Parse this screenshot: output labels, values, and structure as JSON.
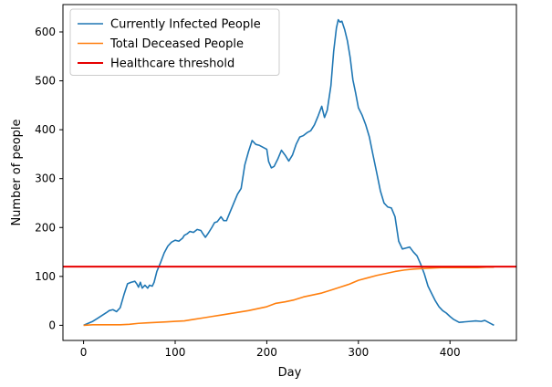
{
  "chart_data": {
    "type": "line",
    "title": "",
    "xlabel": "Day",
    "ylabel": "Number of people",
    "xlim": [
      -22.5,
      472.5
    ],
    "ylim": [
      -31,
      656
    ],
    "xticks": [
      0,
      100,
      200,
      300,
      400
    ],
    "yticks": [
      0,
      100,
      200,
      300,
      400,
      500,
      600
    ],
    "grid": false,
    "legend_position": "top-left",
    "series": [
      {
        "name": "Currently Infected People",
        "color": "#1f77b4",
        "points": [
          [
            0,
            0
          ],
          [
            5,
            4
          ],
          [
            10,
            8
          ],
          [
            15,
            14
          ],
          [
            20,
            20
          ],
          [
            25,
            26
          ],
          [
            28,
            30
          ],
          [
            32,
            32
          ],
          [
            36,
            28
          ],
          [
            40,
            36
          ],
          [
            44,
            62
          ],
          [
            48,
            85
          ],
          [
            52,
            88
          ],
          [
            56,
            90
          ],
          [
            58,
            85
          ],
          [
            60,
            78
          ],
          [
            62,
            88
          ],
          [
            64,
            76
          ],
          [
            67,
            82
          ],
          [
            70,
            76
          ],
          [
            72,
            82
          ],
          [
            75,
            80
          ],
          [
            77,
            88
          ],
          [
            80,
            110
          ],
          [
            84,
            128
          ],
          [
            88,
            148
          ],
          [
            92,
            162
          ],
          [
            96,
            170
          ],
          [
            100,
            174
          ],
          [
            104,
            172
          ],
          [
            108,
            178
          ],
          [
            110,
            184
          ],
          [
            113,
            187
          ],
          [
            116,
            192
          ],
          [
            120,
            190
          ],
          [
            124,
            196
          ],
          [
            128,
            194
          ],
          [
            130,
            188
          ],
          [
            133,
            180
          ],
          [
            136,
            188
          ],
          [
            140,
            200
          ],
          [
            143,
            210
          ],
          [
            146,
            212
          ],
          [
            150,
            222
          ],
          [
            153,
            214
          ],
          [
            156,
            214
          ],
          [
            160,
            232
          ],
          [
            164,
            250
          ],
          [
            168,
            268
          ],
          [
            172,
            280
          ],
          [
            176,
            328
          ],
          [
            180,
            355
          ],
          [
            184,
            378
          ],
          [
            188,
            370
          ],
          [
            192,
            368
          ],
          [
            196,
            364
          ],
          [
            200,
            360
          ],
          [
            202,
            335
          ],
          [
            205,
            322
          ],
          [
            208,
            325
          ],
          [
            212,
            340
          ],
          [
            216,
            358
          ],
          [
            220,
            348
          ],
          [
            224,
            336
          ],
          [
            228,
            348
          ],
          [
            232,
            370
          ],
          [
            236,
            385
          ],
          [
            240,
            388
          ],
          [
            244,
            394
          ],
          [
            248,
            398
          ],
          [
            252,
            410
          ],
          [
            256,
            428
          ],
          [
            260,
            448
          ],
          [
            263,
            425
          ],
          [
            266,
            440
          ],
          [
            270,
            490
          ],
          [
            273,
            560
          ],
          [
            276,
            608
          ],
          [
            278,
            625
          ],
          [
            280,
            620
          ],
          [
            282,
            622
          ],
          [
            285,
            605
          ],
          [
            288,
            582
          ],
          [
            291,
            548
          ],
          [
            294,
            502
          ],
          [
            297,
            475
          ],
          [
            300,
            445
          ],
          [
            304,
            430
          ],
          [
            308,
            410
          ],
          [
            312,
            385
          ],
          [
            316,
            348
          ],
          [
            320,
            312
          ],
          [
            324,
            275
          ],
          [
            328,
            250
          ],
          [
            332,
            242
          ],
          [
            336,
            240
          ],
          [
            340,
            222
          ],
          [
            344,
            172
          ],
          [
            348,
            156
          ],
          [
            352,
            158
          ],
          [
            356,
            160
          ],
          [
            360,
            150
          ],
          [
            364,
            142
          ],
          [
            368,
            125
          ],
          [
            372,
            105
          ],
          [
            376,
            80
          ],
          [
            380,
            65
          ],
          [
            384,
            50
          ],
          [
            388,
            38
          ],
          [
            392,
            30
          ],
          [
            396,
            25
          ],
          [
            400,
            18
          ],
          [
            404,
            12
          ],
          [
            410,
            6
          ],
          [
            416,
            7
          ],
          [
            422,
            8
          ],
          [
            428,
            9
          ],
          [
            434,
            8
          ],
          [
            438,
            10
          ],
          [
            442,
            6
          ],
          [
            446,
            2
          ],
          [
            448,
            0
          ]
        ]
      },
      {
        "name": "Total Deceased People",
        "color": "#ff7f0e",
        "points": [
          [
            0,
            0
          ],
          [
            10,
            1
          ],
          [
            20,
            1
          ],
          [
            30,
            1
          ],
          [
            40,
            1
          ],
          [
            50,
            2
          ],
          [
            60,
            4
          ],
          [
            70,
            5
          ],
          [
            80,
            6
          ],
          [
            90,
            7
          ],
          [
            100,
            8
          ],
          [
            110,
            9
          ],
          [
            120,
            12
          ],
          [
            130,
            15
          ],
          [
            140,
            18
          ],
          [
            150,
            21
          ],
          [
            160,
            24
          ],
          [
            170,
            27
          ],
          [
            180,
            30
          ],
          [
            190,
            34
          ],
          [
            200,
            38
          ],
          [
            210,
            45
          ],
          [
            220,
            48
          ],
          [
            230,
            52
          ],
          [
            240,
            58
          ],
          [
            250,
            62
          ],
          [
            260,
            66
          ],
          [
            270,
            72
          ],
          [
            280,
            78
          ],
          [
            290,
            84
          ],
          [
            300,
            92
          ],
          [
            310,
            97
          ],
          [
            320,
            102
          ],
          [
            330,
            106
          ],
          [
            340,
            110
          ],
          [
            350,
            113
          ],
          [
            360,
            115
          ],
          [
            370,
            116
          ],
          [
            380,
            117
          ],
          [
            390,
            118
          ],
          [
            400,
            118
          ],
          [
            410,
            118
          ],
          [
            420,
            118
          ],
          [
            430,
            118
          ],
          [
            440,
            119
          ],
          [
            448,
            119
          ]
        ]
      },
      {
        "name": "Healthcare threshold",
        "color": "#e60000",
        "points": [
          [
            -22.5,
            120
          ],
          [
            472.5,
            120
          ]
        ]
      }
    ]
  }
}
